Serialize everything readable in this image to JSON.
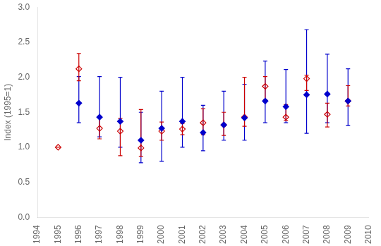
{
  "chart_data": {
    "type": "scatter",
    "ylabel": "Index (1995=1)",
    "xlim": [
      1994,
      2010
    ],
    "xticks": [
      1994,
      1995,
      1996,
      1997,
      1998,
      1999,
      2000,
      2001,
      2002,
      2003,
      2004,
      2005,
      2006,
      2007,
      2008,
      2009,
      2010
    ],
    "ylim": [
      0.0,
      3.0
    ],
    "yticks": [
      {
        "value": 0.0,
        "label": "0.0"
      },
      0.5,
      {
        "value": 1.0,
        "label": "1.0"
      },
      1.5,
      {
        "value": 2.0,
        "label": "2.0"
      },
      2.5,
      {
        "value": 3.0,
        "label": "3.0"
      }
    ],
    "grid": false,
    "series": [
      {
        "color": "#0000cc",
        "marker": "diamond",
        "x": [
          1996,
          1997,
          1998,
          1999,
          2000,
          2001,
          2002,
          2003,
          2004,
          2005,
          2006,
          2007,
          2008,
          2009
        ],
        "values": [
          1.63,
          1.43,
          1.37,
          1.1,
          1.27,
          1.37,
          1.21,
          1.32,
          1.42,
          1.66,
          1.58,
          1.75,
          1.76,
          1.66
        ],
        "err_low": [
          0.28,
          0.28,
          0.37,
          0.32,
          0.47,
          0.37,
          0.26,
          0.22,
          0.32,
          0.31,
          0.23,
          0.55,
          0.41,
          0.35
        ],
        "err_high": [
          0.38,
          0.58,
          0.63,
          0.4,
          0.53,
          0.63,
          0.39,
          0.48,
          0.48,
          0.57,
          0.53,
          0.93,
          0.57,
          0.46
        ]
      },
      {
        "color": "#cc0000",
        "marker": "open_diamond",
        "x": [
          1995,
          1996,
          1997,
          1998,
          1999,
          2000,
          2001,
          2002,
          2003,
          2004,
          2005,
          2006,
          2007,
          2008,
          2009
        ],
        "values": [
          1.0,
          2.12,
          1.27,
          1.23,
          0.99,
          1.23,
          1.26,
          1.35,
          1.32,
          1.43,
          1.87,
          1.43,
          1.98,
          1.47,
          1.66
        ],
        "err_low": [
          0.0,
          0.17,
          0.15,
          0.35,
          0.12,
          0.13,
          0.08,
          0.17,
          0.15,
          0.13,
          0.19,
          0.05,
          0.17,
          0.18,
          0.07
        ],
        "err_high": [
          0.0,
          0.22,
          0.15,
          0.18,
          0.55,
          0.13,
          0.08,
          0.2,
          0.18,
          0.57,
          0.14,
          0.18,
          0.05,
          0.16,
          0.22
        ]
      }
    ]
  }
}
